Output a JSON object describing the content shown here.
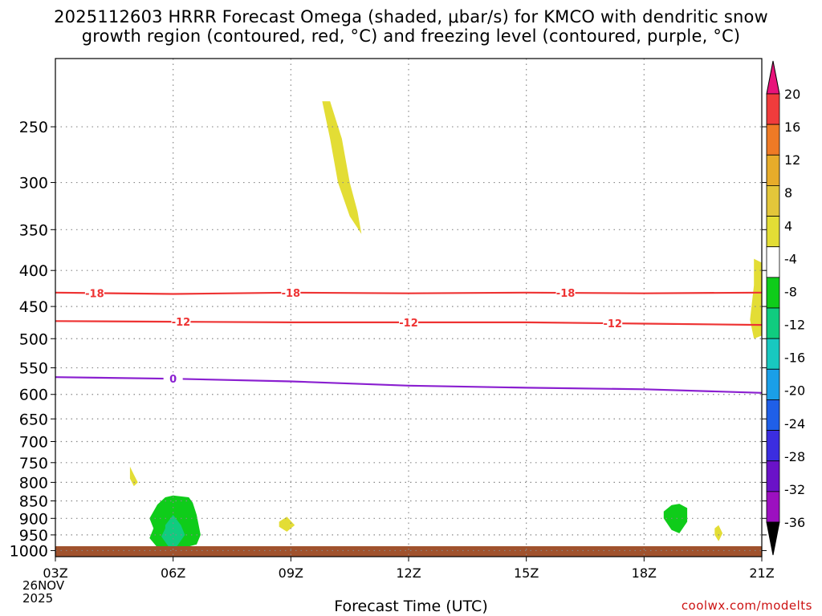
{
  "chart_data": {
    "type": "heatmap",
    "title_line1": "2025112603 HRRR Forecast Omega (shaded, μbar/s) for KMCO with dendritic snow",
    "title_line2": "growth region (contoured, red, °C) and freezing level (contoured, purple, °C)",
    "xlabel": "Forecast Time (UTC)",
    "credit": "coolwx.com/modelts",
    "start_label": {
      "time": "03Z",
      "date": "26NOV",
      "year": "2025"
    },
    "x_ticks": [
      "03Z",
      "06Z",
      "09Z",
      "12Z",
      "15Z",
      "18Z",
      "21Z"
    ],
    "x_range_hours": [
      0,
      18
    ],
    "y_ticks": [
      250,
      300,
      350,
      400,
      450,
      500,
      550,
      600,
      650,
      700,
      750,
      800,
      850,
      900,
      950,
      1000
    ],
    "y_range_hPa": [
      1020,
      200
    ],
    "y_scale": "log-pressure",
    "grid": "dotted",
    "colorbar": {
      "labels": [
        "20",
        "16",
        "12",
        "8",
        "4",
        "-4",
        "-8",
        "-12",
        "-16",
        "-20",
        "-24",
        "-28",
        "-32",
        "-36"
      ],
      "colors": [
        "#e8137a",
        "#f03c3c",
        "#ef7a25",
        "#e7ac2a",
        "#e3c63a",
        "#e3dd35",
        "#ffffff",
        "#0fcc1a",
        "#10cc7f",
        "#18c8c0",
        "#1a9fe8",
        "#1f5fe8",
        "#3b2de0",
        "#6a12c8",
        "#9c10c0",
        "#aaaaaa",
        "#000000"
      ]
    },
    "omega_regions": [
      {
        "value": 4,
        "color": "#e3dd35",
        "t": [
          7.0,
          7.3,
          7.5,
          7.7,
          7.8,
          7.5,
          7.2,
          7.0,
          6.8
        ],
        "p": [
          230,
          260,
          300,
          330,
          355,
          335,
          300,
          260,
          230
        ]
      },
      {
        "value": 4,
        "color": "#e3dd35",
        "t": [
          17.8,
          18.0,
          18.0,
          17.8,
          17.7,
          17.8
        ],
        "p": [
          385,
          390,
          495,
          500,
          470,
          420
        ]
      },
      {
        "value": 4,
        "color": "#e3dd35",
        "t": [
          1.9,
          2.0,
          2.1,
          2.0,
          1.9
        ],
        "p": [
          760,
          780,
          800,
          810,
          790
        ]
      },
      {
        "value": 4,
        "color": "#e3dd35",
        "t": [
          5.7,
          5.9,
          6.1,
          5.9,
          5.7
        ],
        "p": [
          910,
          895,
          920,
          940,
          925
        ]
      },
      {
        "value": 4,
        "color": "#e3dd35",
        "t": [
          16.8,
          16.9,
          17.0,
          16.9,
          16.8
        ],
        "p": [
          930,
          920,
          945,
          970,
          950
        ]
      },
      {
        "value": -4,
        "color": "#0fcc1a",
        "t": [
          2.4,
          2.6,
          2.8,
          3.0,
          3.4,
          3.5,
          3.6,
          3.7,
          3.6,
          3.3,
          3.0,
          2.6,
          2.4,
          2.5
        ],
        "p": [
          900,
          860,
          840,
          835,
          840,
          855,
          890,
          950,
          980,
          990,
          995,
          990,
          960,
          930
        ]
      },
      {
        "value": -8,
        "color": "#10cc7f",
        "t": [
          2.8,
          3.0,
          3.2,
          3.3,
          3.1,
          2.9,
          2.7,
          2.8
        ],
        "p": [
          920,
          890,
          920,
          950,
          985,
          990,
          955,
          930
        ]
      },
      {
        "value": -4,
        "color": "#0fcc1a",
        "t": [
          15.5,
          15.7,
          15.9,
          16.1,
          16.1,
          15.9,
          15.7,
          15.5
        ],
        "p": [
          880,
          862,
          858,
          870,
          910,
          945,
          935,
          900
        ]
      }
    ],
    "isotherms": [
      {
        "label": "-18",
        "color": "#ee3333",
        "t": [
          0,
          3,
          6,
          9,
          12,
          15,
          18
        ],
        "p": [
          430,
          432,
          430,
          431,
          430,
          431,
          430
        ],
        "label_at": [
          1.0,
          6.0,
          13.0
        ]
      },
      {
        "label": "-12",
        "color": "#ee3333",
        "t": [
          0,
          3,
          6,
          9,
          12,
          15,
          18
        ],
        "p": [
          472,
          473,
          474,
          474,
          474,
          476,
          478
        ],
        "label_at": [
          3.2,
          9.0,
          14.2
        ]
      },
      {
        "label": "0",
        "color": "#8a1fd0",
        "t": [
          0,
          3,
          6,
          9,
          12,
          15,
          18
        ],
        "p": [
          567,
          570,
          575,
          583,
          587,
          590,
          597
        ],
        "label_at": [
          3.0
        ]
      }
    ],
    "ground_color": "#a0522d"
  }
}
